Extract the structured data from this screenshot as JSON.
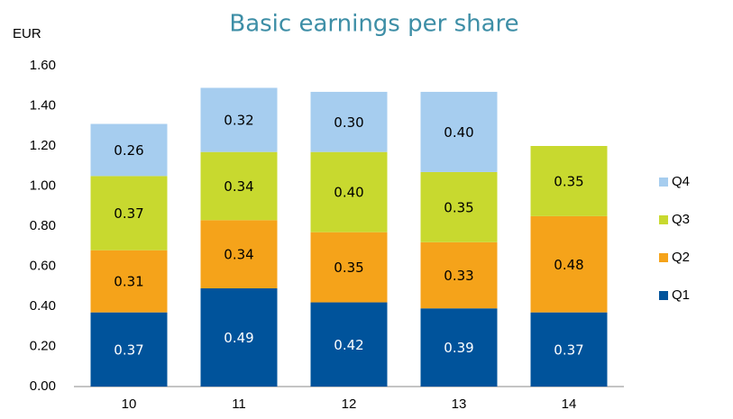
{
  "chart_data": {
    "type": "stacked_bar",
    "title": "Basic earnings per share",
    "y_label": "EUR",
    "categories": [
      "10",
      "11",
      "12",
      "13",
      "14"
    ],
    "series": [
      {
        "name": "Q1",
        "color": "#00539b",
        "values": [
          0.37,
          0.49,
          0.42,
          0.39,
          0.37
        ],
        "value_labels": [
          "0.37",
          "0.49",
          "0.42",
          "0.39",
          "0.37"
        ]
      },
      {
        "name": "Q2",
        "color": "#f5a31a",
        "values": [
          0.31,
          0.34,
          0.35,
          0.33,
          0.48
        ],
        "value_labels": [
          "0.31",
          "0.34",
          "0.35",
          "0.33",
          "0.48"
        ]
      },
      {
        "name": "Q3",
        "color": "#c8d92f",
        "values": [
          0.37,
          0.34,
          0.4,
          0.35,
          0.35
        ],
        "value_labels": [
          "0.37",
          "0.34",
          "0.40",
          "0.35",
          "0.35"
        ]
      },
      {
        "name": "Q4",
        "color": "#a6cdef",
        "values": [
          0.26,
          0.32,
          0.3,
          0.4,
          null
        ],
        "value_labels": [
          "0.26",
          "0.32",
          "0.30",
          "0.40",
          null
        ]
      }
    ],
    "ylim": [
      0,
      1.6
    ],
    "yticks": [
      {
        "value": 0,
        "label": "0.00"
      },
      {
        "value": 0.2,
        "label": "0.20"
      },
      {
        "value": 0.4,
        "label": "0.40"
      },
      {
        "value": 0.6,
        "label": "0.60"
      },
      {
        "value": 0.8,
        "label": "0.80"
      },
      {
        "value": 1.0,
        "label": "1.00"
      },
      {
        "value": 1.2,
        "label": "1.20"
      },
      {
        "value": 1.4,
        "label": "1.40"
      },
      {
        "value": 1.6,
        "label": "1.60"
      }
    ],
    "grid": false,
    "legend": "right"
  }
}
